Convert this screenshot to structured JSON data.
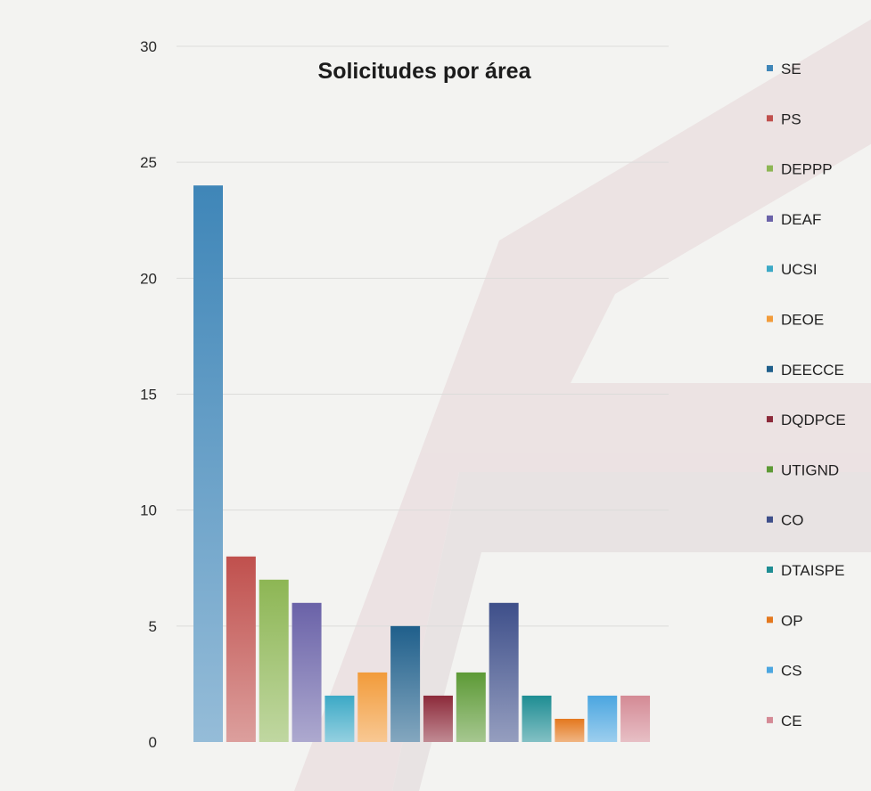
{
  "chart_data": {
    "type": "bar",
    "title": "Solicitudes por área",
    "xlabel": "",
    "ylabel": "",
    "ylim": [
      0,
      30
    ],
    "yticks": [
      0,
      5,
      10,
      15,
      20,
      25,
      30
    ],
    "grid": true,
    "legend_position": "right",
    "categories": [
      "SE",
      "PS",
      "DEPPP",
      "DEAF",
      "UCSI",
      "DEOE",
      "DEECCE",
      "DQDPCE",
      "UTIGND",
      "CO",
      "DTAISPE",
      "OP",
      "CS",
      "CE"
    ],
    "values": [
      24,
      8,
      7,
      6,
      2,
      3,
      5,
      2,
      3,
      6,
      2,
      1,
      2,
      2
    ],
    "colors": [
      "#3f86b8",
      "#c0504d",
      "#8db654",
      "#6a62a8",
      "#3ca9c6",
      "#f29b3a",
      "#1f5f8b",
      "#8c2a3a",
      "#5d9a36",
      "#3e4f8a",
      "#1e8d93",
      "#e4781e",
      "#4ba6e0",
      "#d48a95"
    ]
  }
}
